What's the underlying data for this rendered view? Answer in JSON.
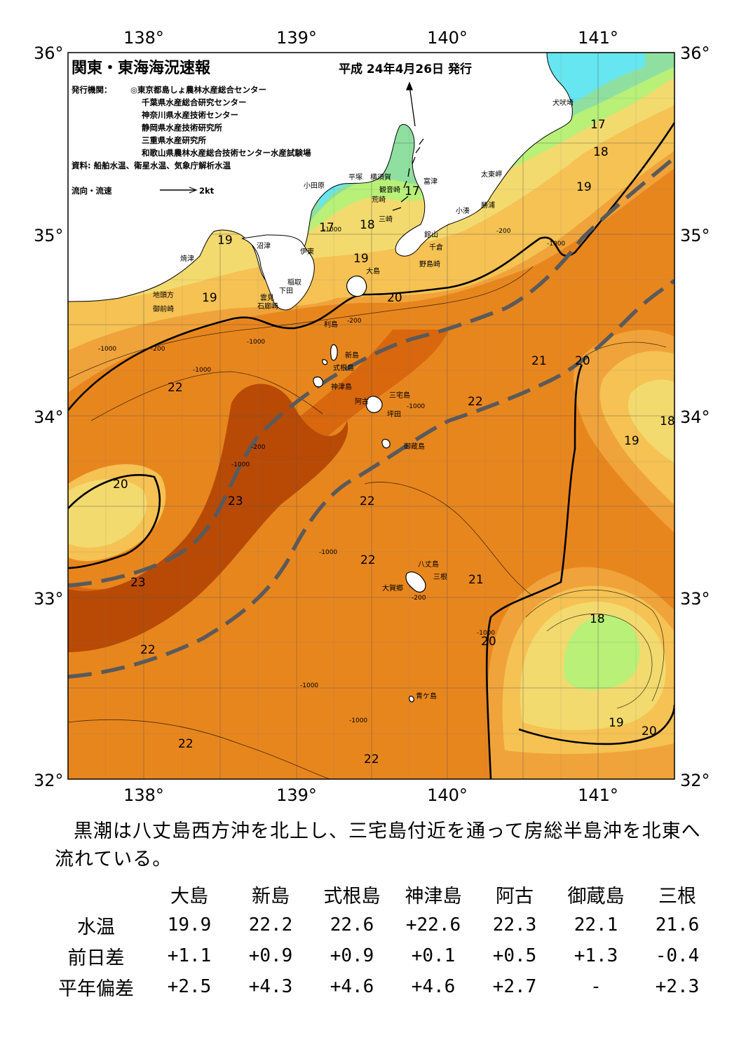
{
  "header": {
    "title": "関東・東海海況速報",
    "date": "平成 24年4月26日 発行",
    "publisher_label": "発行機関：",
    "publishers": [
      "◎東京都島しょ農林水産総合センター",
      "千葉県水産総合研究センター",
      "神奈川県水産技術センター",
      "静岡県水産技術研究所",
      "三重県水産研究所",
      "和歌山県農林水産総合技術センター水産試験場"
    ],
    "sources": "資料: 船舶水温、衛星水温、気象庁解析水温",
    "legend_label": "流向・流速",
    "legend_speed": "2kt"
  },
  "axes": {
    "lon_labels": [
      "138°",
      "139°",
      "140°",
      "141°"
    ],
    "lat_labels": [
      "36°",
      "35°",
      "34°",
      "33°",
      "32°"
    ]
  },
  "colors": {
    "t17": "#8fe0a0",
    "t16": "#66e6f0",
    "t18": "#b8f078",
    "t19": "#f3da6e",
    "t20": "#f5c253",
    "t21": "#f0a33a",
    "t22": "#e8861e",
    "t23": "#d8670e",
    "t24": "#b84a06",
    "kuroshio": "#5a5a5a"
  },
  "place_names": [
    "犬吠埼",
    "太東岬",
    "勝浦",
    "小湊",
    "富津",
    "館山",
    "千倉",
    "野島崎",
    "横須賀",
    "観音崎",
    "平塚",
    "荒崎",
    "三崎",
    "小田原",
    "沼津",
    "伊東",
    "焼津",
    "稲取",
    "下田",
    "雲見",
    "石廊崎",
    "地頭方",
    "御前崎",
    "大島",
    "利島",
    "新島",
    "式根島",
    "神津島",
    "三宅島",
    "阿古",
    "坪田",
    "御蔵島",
    "八丈島",
    "三根",
    "大賀郷",
    "青ケ島"
  ],
  "temperature_labels": [
    "17",
    "18",
    "19",
    "17",
    "18",
    "17",
    "19",
    "19",
    "19",
    "20",
    "21",
    "20",
    "22",
    "22",
    "18",
    "19",
    "20",
    "23",
    "22",
    "22",
    "23",
    "21",
    "20",
    "22",
    "18",
    "19",
    "20",
    "22",
    "22"
  ],
  "depth_labels": [
    "-200",
    "-1000"
  ],
  "summary": "黒潮は八丈島西方沖を北上し、三宅島付近を通って房総半島沖を北東へ流れている。",
  "table": {
    "stations": [
      "大島",
      "新島",
      "式根島",
      "神津島",
      "阿古",
      "御蔵島",
      "三根"
    ],
    "rows": [
      {
        "label": "水温",
        "values": [
          "19.9",
          "22.2",
          "22.6",
          "+22.6",
          "22.3",
          "22.1",
          "21.6"
        ]
      },
      {
        "label": "前日差",
        "values": [
          "+1.1",
          "+0.9",
          "+0.9",
          "+0.1",
          "+0.5",
          "+1.3",
          "-0.4"
        ]
      },
      {
        "label": "平年偏差",
        "values": [
          "+2.5",
          "+4.3",
          "+4.6",
          "+4.6",
          "+2.7",
          "-",
          "+2.3"
        ]
      }
    ]
  }
}
